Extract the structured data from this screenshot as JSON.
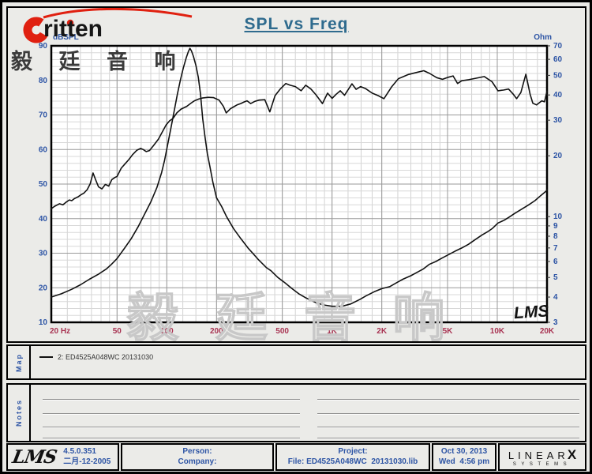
{
  "header": {
    "logo_text": "ritten",
    "logo_cn": "毅 廷 音 响",
    "title": "SPL vs Freq",
    "left_axis_unit": "dBSPL",
    "right_axis_unit": "Ohm"
  },
  "colors": {
    "logo_red": "#e02010",
    "axis_blue": "#2e55a5",
    "freq_maroon": "#a83352",
    "title_teal": "#2f6b8e",
    "curve_black": "#111111",
    "watermark_gray": "#c8c8c8"
  },
  "chart_data": {
    "type": "line",
    "title": "SPL vs Freq",
    "x_axis": {
      "label": "Hz",
      "scale": "log",
      "min": 20,
      "max": 20000,
      "ticks": [
        {
          "f": 20,
          "label": "20 Hz"
        },
        {
          "f": 50,
          "label": "50"
        },
        {
          "f": 100,
          "label": "100"
        },
        {
          "f": 200,
          "label": "200"
        },
        {
          "f": 500,
          "label": "500"
        },
        {
          "f": 1000,
          "label": "1K"
        },
        {
          "f": 2000,
          "label": "2K"
        },
        {
          "f": 5000,
          "label": "5K"
        },
        {
          "f": 10000,
          "label": "10K"
        },
        {
          "f": 20000,
          "label": "20K"
        }
      ],
      "minor_multipliers": [
        1,
        1.25,
        1.5,
        1.75,
        2,
        2.5,
        3,
        3.5,
        4,
        4.5,
        5,
        6,
        7,
        8,
        9
      ]
    },
    "y_left": {
      "label": "dBSPL",
      "scale": "linear",
      "min": 10,
      "max": 90,
      "ticks": [
        90,
        80,
        70,
        60,
        50,
        40,
        30,
        20,
        10
      ],
      "minor_step": 2
    },
    "y_right": {
      "label": "Ohm",
      "scale": "log",
      "min": 3,
      "max": 70,
      "ticks": [
        70,
        60,
        50,
        40,
        30,
        20,
        10,
        9,
        8,
        7,
        6,
        5,
        4,
        3
      ]
    },
    "grid": true,
    "legend_position": "map-strip-below",
    "watermark": "毅 廷 音 响",
    "lms_mark": "LMS",
    "series": [
      {
        "name": "SPL (2: ED4525A048WC 20131030)",
        "axis": "left",
        "unit": "dB",
        "points": [
          [
            20,
            42.9
          ],
          [
            21,
            43.6
          ],
          [
            22.4,
            44.3
          ],
          [
            23.5,
            44
          ],
          [
            24.5,
            44.7
          ],
          [
            25.7,
            45.4
          ],
          [
            26.6,
            45.2
          ],
          [
            27.6,
            45.8
          ],
          [
            29,
            46.3
          ],
          [
            30.2,
            46.9
          ],
          [
            31.5,
            47.4
          ],
          [
            33,
            48.4
          ],
          [
            34.4,
            50.1
          ],
          [
            35.8,
            53.2
          ],
          [
            37,
            51.4
          ],
          [
            38.6,
            49.2
          ],
          [
            40.5,
            48.6
          ],
          [
            42.5,
            49.9
          ],
          [
            44.5,
            49.4
          ],
          [
            46.5,
            51.3
          ],
          [
            48.5,
            51.9
          ],
          [
            50,
            52.2
          ],
          [
            53,
            54.6
          ],
          [
            56,
            55.9
          ],
          [
            59,
            57.1
          ],
          [
            62,
            58.5
          ],
          [
            66,
            59.8
          ],
          [
            69.5,
            60.3
          ],
          [
            72,
            60
          ],
          [
            75,
            59.4
          ],
          [
            78.5,
            59.7
          ],
          [
            83,
            61.1
          ],
          [
            89,
            63
          ],
          [
            94,
            65.1
          ],
          [
            99,
            67.1
          ],
          [
            104,
            68.3
          ],
          [
            109,
            69
          ],
          [
            115,
            70.6
          ],
          [
            122,
            71.7
          ],
          [
            132,
            72.5
          ],
          [
            140,
            73.4
          ],
          [
            147,
            74.1
          ],
          [
            156,
            74.6
          ],
          [
            164,
            74.9
          ],
          [
            178,
            75.1
          ],
          [
            192,
            75
          ],
          [
            207,
            74.3
          ],
          [
            220,
            72.5
          ],
          [
            229,
            70.6
          ],
          [
            243,
            71.8
          ],
          [
            255,
            72.4
          ],
          [
            266,
            72.9
          ],
          [
            280,
            73.3
          ],
          [
            295,
            73.8
          ],
          [
            306,
            74.1
          ],
          [
            322,
            73.3
          ],
          [
            340,
            73.9
          ],
          [
            362,
            74.3
          ],
          [
            392,
            74.4
          ],
          [
            420,
            70.9
          ],
          [
            452,
            75.6
          ],
          [
            484,
            77.4
          ],
          [
            525,
            79.1
          ],
          [
            558,
            78.6
          ],
          [
            600,
            78.2
          ],
          [
            650,
            77
          ],
          [
            693,
            78.6
          ],
          [
            745,
            77.5
          ],
          [
            800,
            75.8
          ],
          [
            875,
            73.3
          ],
          [
            940,
            76.3
          ],
          [
            1000,
            74.8
          ],
          [
            1060,
            76
          ],
          [
            1122,
            77
          ],
          [
            1190,
            75.7
          ],
          [
            1320,
            79
          ],
          [
            1400,
            77.4
          ],
          [
            1490,
            78.2
          ],
          [
            1600,
            77.6
          ],
          [
            1750,
            76.3
          ],
          [
            1900,
            75.6
          ],
          [
            2060,
            74.7
          ],
          [
            2300,
            78.2
          ],
          [
            2520,
            80.5
          ],
          [
            2900,
            81.7
          ],
          [
            3250,
            82.3
          ],
          [
            3590,
            82.8
          ],
          [
            3900,
            82
          ],
          [
            4300,
            80.8
          ],
          [
            4660,
            80.3
          ],
          [
            5050,
            80.9
          ],
          [
            5400,
            81.3
          ],
          [
            5750,
            79.1
          ],
          [
            6100,
            79.9
          ],
          [
            6700,
            80.2
          ],
          [
            7400,
            80.6
          ],
          [
            8350,
            81.1
          ],
          [
            9300,
            79.6
          ],
          [
            10100,
            77
          ],
          [
            10900,
            77.2
          ],
          [
            11700,
            77.5
          ],
          [
            12500,
            76
          ],
          [
            13100,
            74.7
          ],
          [
            13900,
            76.5
          ],
          [
            14900,
            81.8
          ],
          [
            15800,
            76
          ],
          [
            16400,
            73.4
          ],
          [
            17300,
            72.9
          ],
          [
            18600,
            74.1
          ],
          [
            19300,
            73.8
          ],
          [
            20000,
            76.9
          ]
        ]
      },
      {
        "name": "Impedance (2: ED4525A048WC 20131030)",
        "axis": "right",
        "unit": "Ohm",
        "points": [
          [
            20,
            4
          ],
          [
            23,
            4.15
          ],
          [
            26.6,
            4.37
          ],
          [
            30,
            4.6
          ],
          [
            34,
            4.9
          ],
          [
            38.7,
            5.2
          ],
          [
            43,
            5.5
          ],
          [
            46.2,
            5.8
          ],
          [
            50,
            6.2
          ],
          [
            55.6,
            7
          ],
          [
            61,
            7.8
          ],
          [
            67,
            8.9
          ],
          [
            73,
            10.2
          ],
          [
            80,
            11.8
          ],
          [
            87,
            13.9
          ],
          [
            93,
            16.5
          ],
          [
            97,
            19
          ],
          [
            101,
            22.5
          ],
          [
            106,
            27.5
          ],
          [
            111,
            33.5
          ],
          [
            116,
            40.5
          ],
          [
            121,
            47.5
          ],
          [
            126,
            54.5
          ],
          [
            131,
            61
          ],
          [
            135,
            65.5
          ],
          [
            138,
            68
          ],
          [
            141,
            66
          ],
          [
            145,
            62
          ],
          [
            150,
            56
          ],
          [
            155,
            49
          ],
          [
            160,
            40.5
          ],
          [
            165,
            30.5
          ],
          [
            170,
            25
          ],
          [
            176,
            20.5
          ],
          [
            182,
            17.8
          ],
          [
            190,
            14.8
          ],
          [
            200,
            12.4
          ],
          [
            215,
            11.2
          ],
          [
            230,
            10
          ],
          [
            254,
            8.7
          ],
          [
            280,
            7.8
          ],
          [
            310,
            7
          ],
          [
            331,
            6.6
          ],
          [
            360,
            6.1
          ],
          [
            400,
            5.6
          ],
          [
            427,
            5.4
          ],
          [
            470,
            5
          ],
          [
            520,
            4.7
          ],
          [
            573,
            4.4
          ],
          [
            630,
            4.15
          ],
          [
            700,
            3.95
          ],
          [
            800,
            3.75
          ],
          [
            895,
            3.65
          ],
          [
            1000,
            3.6
          ],
          [
            1150,
            3.6
          ],
          [
            1300,
            3.7
          ],
          [
            1480,
            3.9
          ],
          [
            1600,
            4.05
          ],
          [
            1800,
            4.25
          ],
          [
            2000,
            4.4
          ],
          [
            2230,
            4.5
          ],
          [
            2450,
            4.7
          ],
          [
            2680,
            4.9
          ],
          [
            3000,
            5.1
          ],
          [
            3200,
            5.25
          ],
          [
            3560,
            5.5
          ],
          [
            3870,
            5.8
          ],
          [
            4250,
            6
          ],
          [
            4650,
            6.25
          ],
          [
            5100,
            6.5
          ],
          [
            5560,
            6.75
          ],
          [
            6100,
            7
          ],
          [
            6700,
            7.3
          ],
          [
            7350,
            7.7
          ],
          [
            8070,
            8.1
          ],
          [
            8700,
            8.4
          ],
          [
            9350,
            8.75
          ],
          [
            10100,
            9.3
          ],
          [
            11000,
            9.6
          ],
          [
            11700,
            9.9
          ],
          [
            12800,
            10.4
          ],
          [
            14100,
            10.9
          ],
          [
            15400,
            11.4
          ],
          [
            16900,
            12
          ],
          [
            18300,
            12.7
          ],
          [
            19800,
            13.4
          ],
          [
            20000,
            13.6
          ]
        ]
      }
    ]
  },
  "map": {
    "label": "Map",
    "legend": "2: ED4525A048WC   20131030"
  },
  "notes": {
    "label": "Notes"
  },
  "footer": {
    "lms_logo": "LMS",
    "version": "4.5.0.351",
    "version_date": "二月-12-2005",
    "person": "Person:",
    "company": "Company:",
    "project": "Project:",
    "file": "File: ED4525A048WC  20131030.lib",
    "date": "Oct 30, 2013",
    "time": "Wed  4:56 pm",
    "brand": {
      "linear": "LINEAR",
      "x": "X",
      "systems": "SYSTEMS"
    }
  }
}
